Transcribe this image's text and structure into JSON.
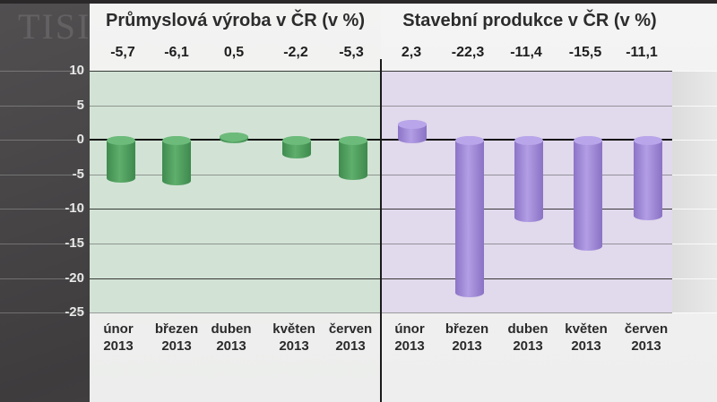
{
  "y_axis": {
    "ticks": [
      "10",
      "5",
      "0",
      "-5",
      "-10",
      "-15",
      "-20",
      "-25"
    ]
  },
  "background": {
    "watermark": "TISI"
  },
  "left_panel": {
    "title": "Průmyslová výroba v ČR (v %)",
    "value_labels": [
      "-5,7",
      "-6,1",
      "0,5",
      "-2,2",
      "-5,3"
    ],
    "months": [
      "únor",
      "březen",
      "duben",
      "květen",
      "červen"
    ],
    "years": [
      "2013",
      "2013",
      "2013",
      "2013",
      "2013"
    ],
    "bar_color": "#4f9d5e",
    "plot_bg": "#d2e3d5"
  },
  "right_panel": {
    "title": "Stavební produkce v ČR (v %)",
    "value_labels": [
      "2,3",
      "-22,3",
      "-11,4",
      "-15,5",
      "-11,1"
    ],
    "months": [
      "únor",
      "březen",
      "duben",
      "květen",
      "červen"
    ],
    "years": [
      "2013",
      "2013",
      "2013",
      "2013",
      "2013"
    ],
    "bar_color": "#a08bd8",
    "plot_bg": "#e1d9ec"
  },
  "chart_data": [
    {
      "type": "bar",
      "title": "Průmyslová výroba v ČR (v %)",
      "categories": [
        "únor 2013",
        "březen 2013",
        "duben 2013",
        "květen 2013",
        "červen 2013"
      ],
      "values": [
        -5.7,
        -6.1,
        0.5,
        -2.2,
        -5.3
      ],
      "xlabel": "",
      "ylabel": "",
      "ylim": [
        -25,
        10
      ],
      "yticks": [
        10,
        5,
        0,
        -5,
        -10,
        -15,
        -20,
        -25
      ],
      "grid": true,
      "legend": null,
      "color": "#4f9d5e"
    },
    {
      "type": "bar",
      "title": "Stavební produkce v ČR (v %)",
      "categories": [
        "únor 2013",
        "březen 2013",
        "duben 2013",
        "květen 2013",
        "červen 2013"
      ],
      "values": [
        2.3,
        -22.3,
        -11.4,
        -15.5,
        -11.1
      ],
      "xlabel": "",
      "ylabel": "",
      "ylim": [
        -25,
        10
      ],
      "yticks": [
        10,
        5,
        0,
        -5,
        -10,
        -15,
        -20,
        -25
      ],
      "grid": true,
      "legend": null,
      "color": "#a08bd8"
    }
  ]
}
